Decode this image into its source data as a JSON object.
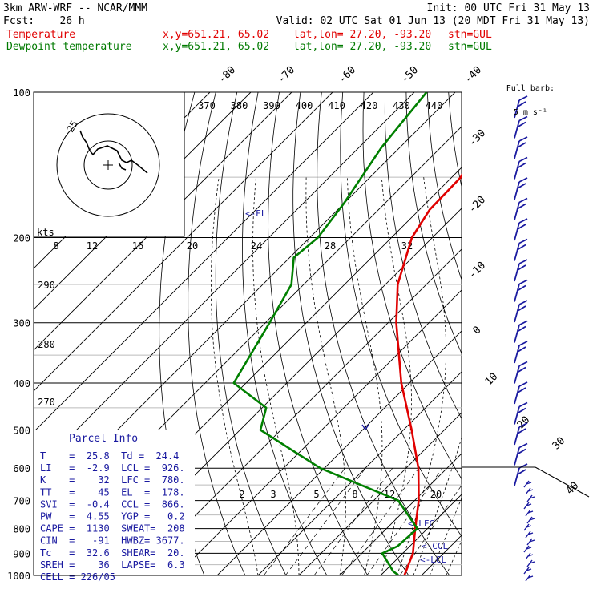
{
  "header": {
    "model": "3km ARW-WRF -- NCAR/MMM",
    "init": "Init: 00 UTC Fri 31 May 13",
    "fcst": "Fcst:    26 h",
    "valid": "Valid: 02 UTC Sat 01 Jun 13 (20 MDT Fri 31 May 13)",
    "temp_label": "Temperature",
    "dew_label": "Dewpoint temperature",
    "xy": "x,y=651.21, 65.02",
    "latlon": "lat,lon= 27.20, -93.20",
    "stn": "stn=GUL"
  },
  "colors": {
    "temperature": "#e00000",
    "dewpoint": "#008000",
    "barbs": "#1a1aa0",
    "text_blue": "#1a1aa0"
  },
  "wind_key": {
    "title": "Full barb:",
    "value": "5 m s⁻¹"
  },
  "hodograph": {
    "units": "kts",
    "ring_label": "25"
  },
  "parcel_info": {
    "title": "Parcel Info",
    "rows": [
      "T    =  25.8  Td =  24.4",
      "LI   =  -2.9  LCL =  926.",
      "K    =    32  LFC =  780.",
      "TT   =    45  EL  =  178.",
      "SVI  =  -0.4  CCL =  866.",
      "PW   =  4.55  YGP =   0.2",
      "CAPE =  1130  SWEAT=  208",
      "CIN  =   -91  HWBZ= 3677.",
      "Tc   =  32.6  SHEAR=  20.",
      "SREH =    36  LAPSE=  6.3",
      "CELL = 226/05"
    ]
  },
  "level_labels": {
    "el": "<-EL",
    "lfc": "<-LFC",
    "ccl": "<-CCL",
    "lcl": "<-LCL"
  },
  "chart_data": {
    "type": "line",
    "title": "",
    "pressure_levels": [
      100,
      200,
      300,
      400,
      500,
      600,
      700,
      800,
      900,
      1000
    ],
    "isotherm_labels": [
      -80,
      -70,
      -60,
      -50,
      -40,
      -30,
      -20,
      -10,
      0,
      10,
      20,
      30,
      40
    ],
    "theta_labels": [
      370,
      380,
      390,
      400,
      410,
      420,
      430,
      440
    ],
    "theta_labels_side": [
      290,
      280,
      270
    ],
    "mixing_ratio_labels": [
      "2",
      "3",
      "5",
      "8",
      "12",
      "20"
    ],
    "hodo_speed_labels": [
      "8",
      "12",
      "16",
      "20",
      "24",
      "28",
      "32"
    ],
    "series": [
      {
        "name": "Temperature",
        "points": [
          [
            100,
            -73.5
          ],
          [
            130,
            -61.5
          ],
          [
            150,
            -57.8
          ],
          [
            175,
            -57.5
          ],
          [
            200,
            -55
          ],
          [
            250,
            -47
          ],
          [
            300,
            -38
          ],
          [
            400,
            -22
          ],
          [
            500,
            -8
          ],
          [
            600,
            3
          ],
          [
            700,
            11
          ],
          [
            800,
            17
          ],
          [
            900,
            22.5
          ],
          [
            1000,
            25.8
          ]
        ]
      },
      {
        "name": "Dewpoint temperature",
        "points": [
          [
            100,
            -87
          ],
          [
            130,
            -84.5
          ],
          [
            170,
            -80
          ],
          [
            200,
            -78
          ],
          [
            220,
            -79
          ],
          [
            250,
            -73
          ],
          [
            300,
            -69
          ],
          [
            400,
            -63
          ],
          [
            450,
            -49
          ],
          [
            500,
            -45
          ],
          [
            600,
            -21
          ],
          [
            700,
            6
          ],
          [
            800,
            17.5
          ],
          [
            870,
            17
          ],
          [
            900,
            15
          ],
          [
            980,
            22
          ],
          [
            1000,
            24.4
          ]
        ]
      }
    ]
  }
}
